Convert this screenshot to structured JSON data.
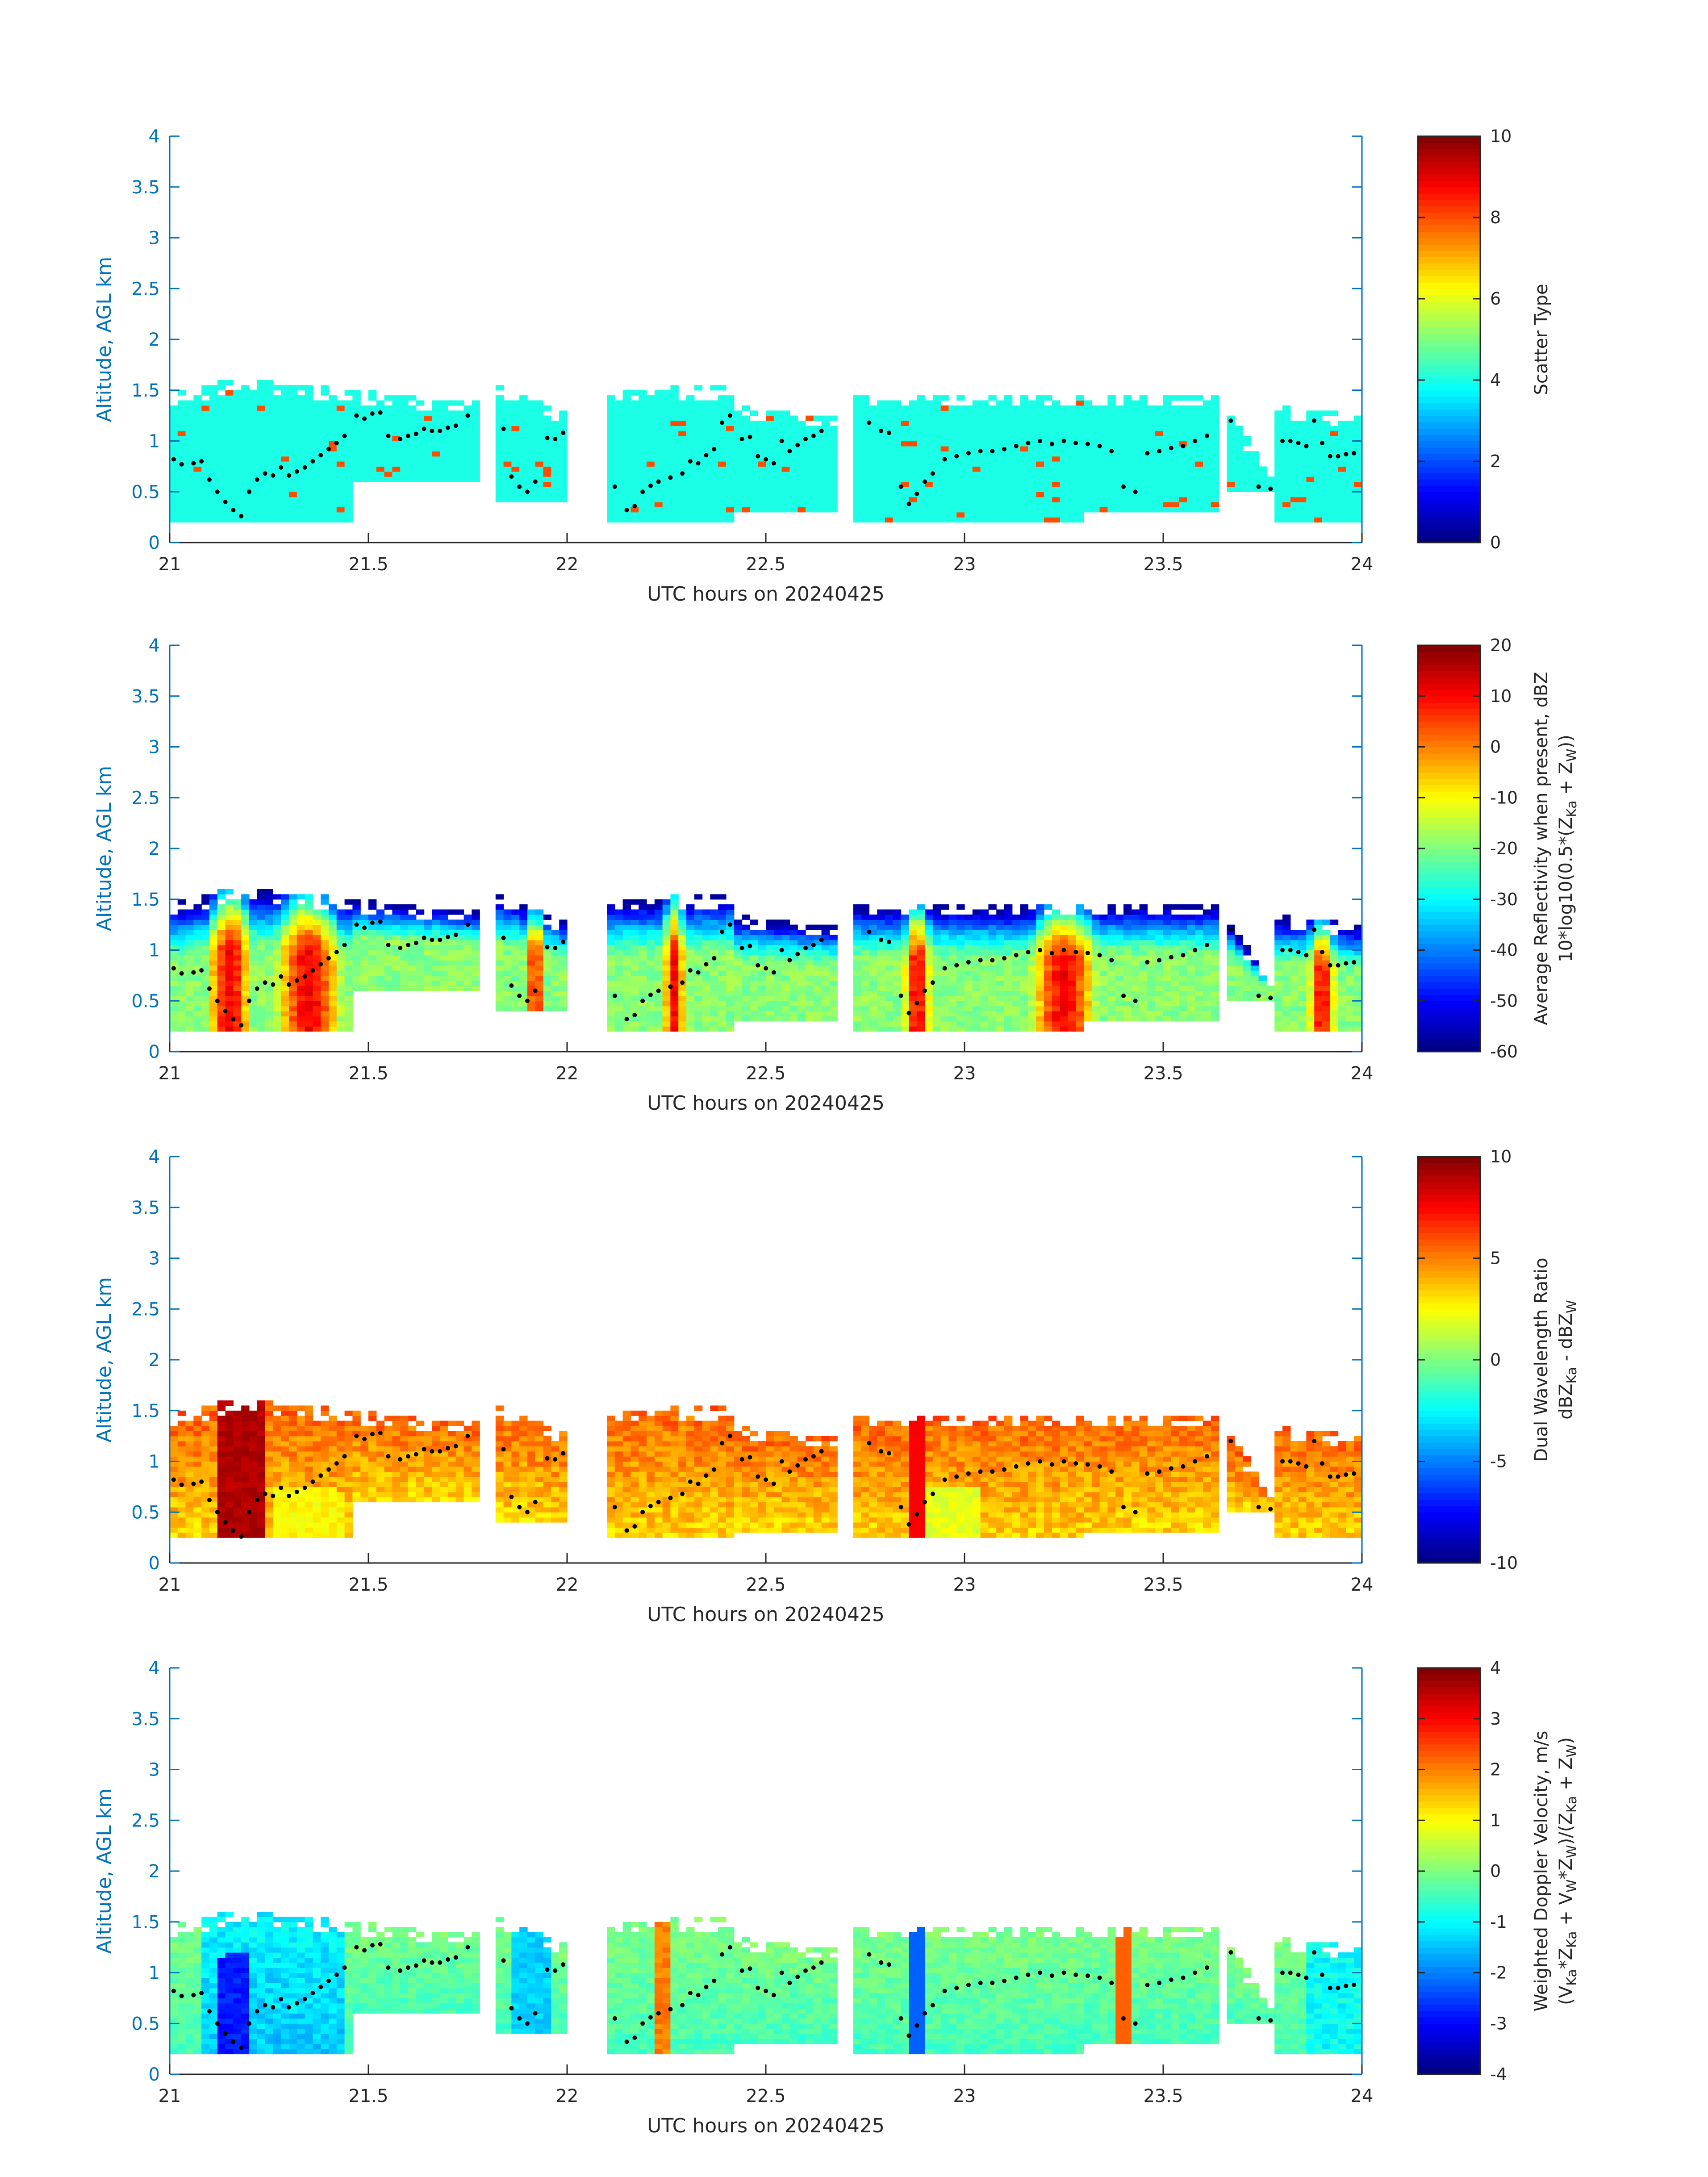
{
  "chart_data": [
    {
      "type": "heatmap",
      "xlabel": "UTC hours on 20240425",
      "ylabel": "Altitude, AGL km",
      "xlim": [
        21,
        24
      ],
      "ylim": [
        0,
        4
      ],
      "xticks": [
        "21",
        "21.5",
        "22",
        "22.5",
        "23",
        "23.5",
        "24"
      ],
      "yticks": [
        "0",
        "0.5",
        "1",
        "1.5",
        "2",
        "2.5",
        "3",
        "3.5",
        "4"
      ],
      "colorbar": {
        "label_lines": [
          "Scatter Type"
        ],
        "clim": [
          0,
          10
        ],
        "ticks": [
          "0",
          "2",
          "4",
          "6",
          "8",
          "10"
        ]
      },
      "colormap": "jet",
      "field": "scatter_type",
      "grid": false
    },
    {
      "type": "heatmap",
      "xlabel": "UTC hours on 20240425",
      "ylabel": "Altitude, AGL km",
      "xlim": [
        21,
        24
      ],
      "ylim": [
        0,
        4
      ],
      "xticks": [
        "21",
        "21.5",
        "22",
        "22.5",
        "23",
        "23.5",
        "24"
      ],
      "yticks": [
        "0",
        "0.5",
        "1",
        "1.5",
        "2",
        "2.5",
        "3",
        "3.5",
        "4"
      ],
      "colorbar": {
        "label_lines": [
          "Average Reflectivity when present, dBZ",
          "10*log10(0.5*(Z_Ka + Z_W))"
        ],
        "clim": [
          -60,
          20
        ],
        "ticks": [
          "-60",
          "-50",
          "-40",
          "-30",
          "-20",
          "-10",
          "0",
          "10",
          "20"
        ]
      },
      "colormap": "jet",
      "field": "reflectivity",
      "grid": false
    },
    {
      "type": "heatmap",
      "xlabel": "UTC hours on 20240425",
      "ylabel": "Altitude, AGL km",
      "xlim": [
        21,
        24
      ],
      "ylim": [
        0,
        4
      ],
      "xticks": [
        "21",
        "21.5",
        "22",
        "22.5",
        "23",
        "23.5",
        "24"
      ],
      "yticks": [
        "0",
        "0.5",
        "1",
        "1.5",
        "2",
        "2.5",
        "3",
        "3.5",
        "4"
      ],
      "colorbar": {
        "label_lines": [
          "Dual Wavelength Ratio",
          "dBZ_Ka - dBZ_W"
        ],
        "clim": [
          -10,
          10
        ],
        "ticks": [
          "-10",
          "-5",
          "0",
          "5",
          "10"
        ]
      },
      "colormap": "jet",
      "field": "dwr",
      "grid": false
    },
    {
      "type": "heatmap",
      "xlabel": "UTC hours on 20240425",
      "ylabel": "Altitude, AGL km",
      "xlim": [
        21,
        24
      ],
      "ylim": [
        0,
        4
      ],
      "xticks": [
        "21",
        "21.5",
        "22",
        "22.5",
        "23",
        "23.5",
        "24"
      ],
      "yticks": [
        "0",
        "0.5",
        "1",
        "1.5",
        "2",
        "2.5",
        "3",
        "3.5",
        "4"
      ],
      "colorbar": {
        "label_lines": [
          "Weighted Doppler Velocity, m/s",
          "(V_Ka*Z_Ka + V_W*Z_W)/(Z_Ka + Z_W)"
        ],
        "clim": [
          -4,
          4
        ],
        "ticks": [
          "-4",
          "-3",
          "-2",
          "-1",
          "0",
          "1",
          "2",
          "3",
          "4"
        ]
      },
      "colormap": "jet",
      "field": "velocity",
      "grid": false
    }
  ],
  "cloud_segments": [
    {
      "x": [
        21.0,
        21.15
      ],
      "base": 0.2,
      "top": [
        1.45,
        1.6
      ]
    },
    {
      "x": [
        21.15,
        21.45
      ],
      "base": 0.2,
      "top": [
        1.65,
        1.5
      ]
    },
    {
      "x": [
        21.45,
        21.77
      ],
      "base": 0.6,
      "top": [
        1.5,
        1.4
      ]
    },
    {
      "x": [
        21.83,
        21.99
      ],
      "base": 0.4,
      "top": [
        1.55,
        1.3
      ]
    },
    {
      "x": [
        22.1,
        22.42
      ],
      "base": 0.2,
      "top": [
        1.5,
        1.55
      ]
    },
    {
      "x": [
        22.42,
        22.67
      ],
      "base": 0.3,
      "top": [
        1.35,
        1.25
      ]
    },
    {
      "x": [
        22.73,
        23.3
      ],
      "base": 0.2,
      "top": [
        1.45,
        1.45
      ]
    },
    {
      "x": [
        23.3,
        23.64
      ],
      "base": 0.3,
      "top": [
        1.45,
        1.45
      ]
    },
    {
      "x": [
        23.66,
        23.77
      ],
      "base": 0.5,
      "top": [
        1.3,
        0.7
      ]
    },
    {
      "x": [
        23.78,
        24.0
      ],
      "base": 0.2,
      "top": [
        1.35,
        1.25
      ]
    }
  ],
  "cloud_base_points": [
    [
      21.01,
      0.82
    ],
    [
      21.03,
      0.77
    ],
    [
      21.06,
      0.78
    ],
    [
      21.08,
      0.8
    ],
    [
      21.1,
      0.62
    ],
    [
      21.12,
      0.5
    ],
    [
      21.14,
      0.4
    ],
    [
      21.16,
      0.32
    ],
    [
      21.18,
      0.26
    ],
    [
      21.2,
      0.5
    ],
    [
      21.22,
      0.62
    ],
    [
      21.24,
      0.68
    ],
    [
      21.26,
      0.66
    ],
    [
      21.28,
      0.74
    ],
    [
      21.3,
      0.66
    ],
    [
      21.32,
      0.7
    ],
    [
      21.34,
      0.74
    ],
    [
      21.36,
      0.8
    ],
    [
      21.38,
      0.86
    ],
    [
      21.4,
      0.92
    ],
    [
      21.42,
      0.98
    ],
    [
      21.44,
      1.05
    ],
    [
      21.47,
      1.25
    ],
    [
      21.49,
      1.22
    ],
    [
      21.51,
      1.27
    ],
    [
      21.53,
      1.28
    ],
    [
      21.55,
      1.05
    ],
    [
      21.58,
      1.02
    ],
    [
      21.6,
      1.05
    ],
    [
      21.62,
      1.07
    ],
    [
      21.64,
      1.12
    ],
    [
      21.66,
      1.1
    ],
    [
      21.68,
      1.1
    ],
    [
      21.7,
      1.13
    ],
    [
      21.72,
      1.15
    ],
    [
      21.75,
      1.25
    ],
    [
      21.84,
      1.12
    ],
    [
      21.86,
      0.65
    ],
    [
      21.88,
      0.55
    ],
    [
      21.9,
      0.5
    ],
    [
      21.92,
      0.6
    ],
    [
      21.95,
      1.03
    ],
    [
      21.97,
      1.02
    ],
    [
      21.99,
      1.08
    ],
    [
      22.12,
      0.55
    ],
    [
      22.15,
      0.32
    ],
    [
      22.17,
      0.36
    ],
    [
      22.19,
      0.5
    ],
    [
      22.21,
      0.56
    ],
    [
      22.23,
      0.6
    ],
    [
      22.26,
      0.64
    ],
    [
      22.29,
      0.68
    ],
    [
      22.31,
      0.8
    ],
    [
      22.33,
      0.78
    ],
    [
      22.35,
      0.86
    ],
    [
      22.37,
      0.92
    ],
    [
      22.39,
      1.18
    ],
    [
      22.41,
      1.25
    ],
    [
      22.44,
      1.02
    ],
    [
      22.46,
      1.04
    ],
    [
      22.48,
      0.85
    ],
    [
      22.5,
      0.82
    ],
    [
      22.52,
      0.78
    ],
    [
      22.54,
      1.0
    ],
    [
      22.56,
      0.9
    ],
    [
      22.58,
      0.96
    ],
    [
      22.6,
      1.02
    ],
    [
      22.62,
      1.05
    ],
    [
      22.64,
      1.1
    ],
    [
      22.76,
      1.18
    ],
    [
      22.79,
      1.1
    ],
    [
      22.81,
      1.08
    ],
    [
      22.84,
      0.55
    ],
    [
      22.86,
      0.38
    ],
    [
      22.88,
      0.48
    ],
    [
      22.9,
      0.6
    ],
    [
      22.92,
      0.68
    ],
    [
      22.95,
      0.82
    ],
    [
      22.98,
      0.85
    ],
    [
      23.01,
      0.88
    ],
    [
      23.04,
      0.9
    ],
    [
      23.07,
      0.9
    ],
    [
      23.1,
      0.92
    ],
    [
      23.13,
      0.95
    ],
    [
      23.16,
      0.98
    ],
    [
      23.19,
      1.0
    ],
    [
      23.22,
      0.97
    ],
    [
      23.25,
      1.0
    ],
    [
      23.28,
      0.98
    ],
    [
      23.31,
      0.97
    ],
    [
      23.34,
      0.95
    ],
    [
      23.37,
      0.9
    ],
    [
      23.4,
      0.55
    ],
    [
      23.43,
      0.5
    ],
    [
      23.46,
      0.88
    ],
    [
      23.49,
      0.9
    ],
    [
      23.52,
      0.93
    ],
    [
      23.55,
      0.95
    ],
    [
      23.58,
      1.0
    ],
    [
      23.61,
      1.05
    ],
    [
      23.67,
      1.2
    ],
    [
      23.74,
      0.55
    ],
    [
      23.77,
      0.53
    ],
    [
      23.8,
      1.0
    ],
    [
      23.82,
      1.0
    ],
    [
      23.84,
      0.98
    ],
    [
      23.86,
      0.95
    ],
    [
      23.88,
      1.2
    ],
    [
      23.9,
      0.98
    ],
    [
      23.92,
      0.85
    ],
    [
      23.94,
      0.85
    ],
    [
      23.96,
      0.87
    ],
    [
      23.98,
      0.88
    ]
  ]
}
